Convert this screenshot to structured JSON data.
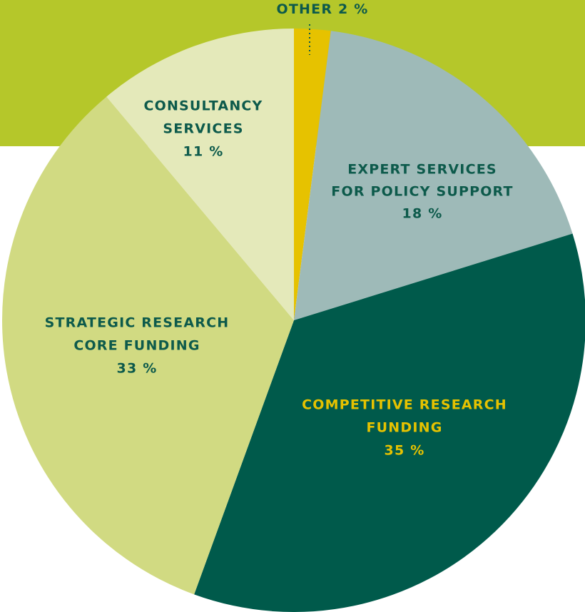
{
  "chart_data": {
    "type": "pie",
    "categories": [
      [
        "OTHER"
      ],
      [
        "EXPERT SERVICES",
        "FOR POLICY SUPPORT"
      ],
      [
        "COMPETITIVE RESEARCH",
        "FUNDING"
      ],
      [
        "STRATEGIC RESEARCH",
        "CORE FUNDING"
      ],
      [
        "CONSULTANCY",
        "SERVICES"
      ]
    ],
    "values": [
      2,
      18,
      35,
      33,
      11
    ],
    "value_labels": [
      "2 %",
      "18 %",
      "35 %",
      "33 %",
      "11 %"
    ],
    "colors": [
      "#e6c200",
      "#9ebab8",
      "#005a4b",
      "#d1da82",
      "#e4e9ba"
    ],
    "label_colors": [
      "#0d5a4b",
      "#0d5a4b",
      "#e6c200",
      "#0d5a4b",
      "#0d5a4b"
    ]
  }
}
